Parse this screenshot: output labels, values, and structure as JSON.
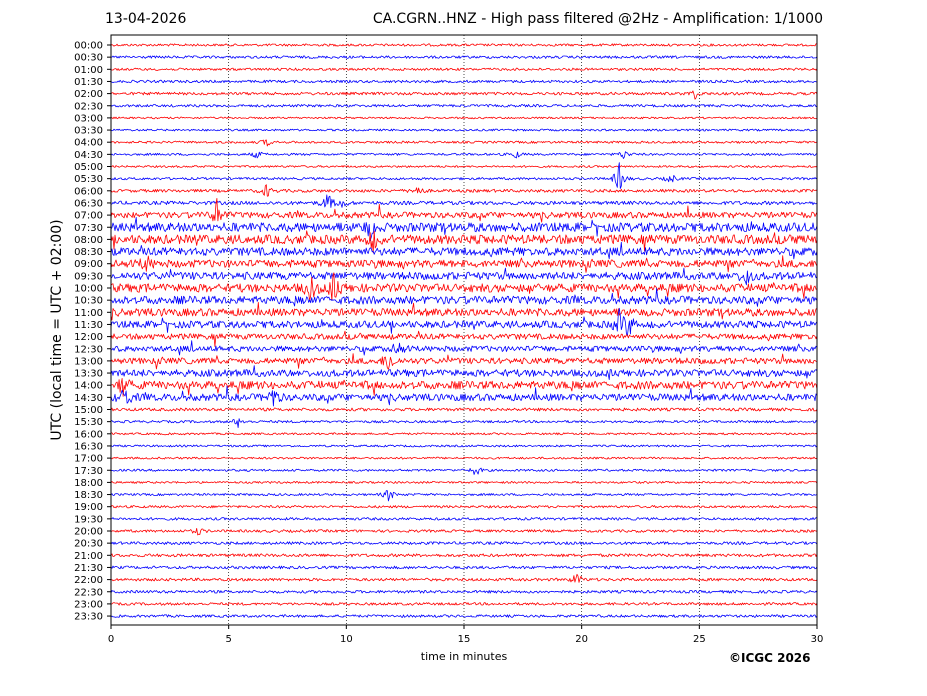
{
  "header": {
    "date": "13-04-2026",
    "title": "CA.CGRN..HNZ - High pass filtered @2Hz - Amplification: 1/1000"
  },
  "footer": {
    "copyright": "©ICGC 2026"
  },
  "colors": {
    "even_row": "#ff0000",
    "odd_row": "#0000ff",
    "grid": "#000000"
  },
  "chart_data": {
    "type": "line",
    "title": "CA.CGRN..HNZ - High pass filtered @2Hz - Amplification: 1/1000",
    "xlabel": "time in minutes",
    "ylabel": "UTC (local time = UTC + 02:00)",
    "xlim": [
      0,
      30
    ],
    "xticks": [
      0,
      5,
      10,
      15,
      20,
      25,
      30
    ],
    "grid": "vertical dotted at 5-minute intervals",
    "row_labels": [
      "00:00",
      "00:30",
      "01:00",
      "01:30",
      "02:00",
      "02:30",
      "03:00",
      "03:30",
      "04:00",
      "04:30",
      "05:00",
      "05:30",
      "06:00",
      "06:30",
      "07:00",
      "07:30",
      "08:00",
      "08:30",
      "09:00",
      "09:30",
      "10:00",
      "10:30",
      "11:00",
      "11:30",
      "12:00",
      "12:30",
      "13:00",
      "13:30",
      "14:00",
      "14:30",
      "15:00",
      "15:30",
      "16:00",
      "16:30",
      "17:00",
      "17:30",
      "18:00",
      "18:30",
      "19:00",
      "19:30",
      "20:00",
      "20:30",
      "21:00",
      "21:30",
      "22:00",
      "22:30",
      "23:00",
      "23:30"
    ],
    "row_amplitude": [
      1.2,
      1.3,
      1.2,
      1.3,
      1.4,
      1.3,
      0.9,
      1.0,
      1.1,
      1.1,
      1.0,
      1.2,
      1.5,
      1.8,
      3.0,
      4.5,
      4.5,
      4.0,
      3.8,
      3.8,
      4.2,
      4.0,
      3.8,
      3.5,
      2.8,
      2.8,
      3.0,
      3.5,
      4.0,
      3.5,
      1.5,
      1.2,
      1.0,
      1.0,
      1.0,
      1.1,
      1.0,
      1.1,
      1.2,
      1.3,
      1.3,
      1.4,
      1.5,
      1.4,
      1.4,
      1.4,
      1.3,
      1.3
    ],
    "events": [
      {
        "row": 4,
        "minute": 24.8,
        "amplitude": 5
      },
      {
        "row": 8,
        "minute": 6.6,
        "amplitude": 4
      },
      {
        "row": 9,
        "minute": 6.2,
        "amplitude": 4
      },
      {
        "row": 9,
        "minute": 17.2,
        "amplitude": 4
      },
      {
        "row": 9,
        "minute": 21.8,
        "amplitude": 5
      },
      {
        "row": 11,
        "minute": 21.6,
        "amplitude": 16
      },
      {
        "row": 11,
        "minute": 23.8,
        "amplitude": 5
      },
      {
        "row": 12,
        "minute": 6.6,
        "amplitude": 7
      },
      {
        "row": 12,
        "minute": 13.0,
        "amplitude": 6
      },
      {
        "row": 13,
        "minute": 9.2,
        "amplitude": 10
      },
      {
        "row": 13,
        "minute": 9.8,
        "amplitude": 5
      },
      {
        "row": 14,
        "minute": 4.5,
        "amplitude": 14
      },
      {
        "row": 15,
        "minute": 11.0,
        "amplitude": 10
      },
      {
        "row": 16,
        "minute": 11.1,
        "amplitude": 12
      },
      {
        "row": 18,
        "minute": 1.5,
        "amplitude": 8
      },
      {
        "row": 19,
        "minute": 27.0,
        "amplitude": 10
      },
      {
        "row": 20,
        "minute": 8.5,
        "amplitude": 14
      },
      {
        "row": 20,
        "minute": 9.5,
        "amplitude": 14
      },
      {
        "row": 23,
        "minute": 22.0,
        "amplitude": 12
      },
      {
        "row": 23,
        "minute": 21.6,
        "amplitude": 12
      },
      {
        "row": 25,
        "minute": 12.2,
        "amplitude": 8
      },
      {
        "row": 26,
        "minute": 11.8,
        "amplitude": 12
      },
      {
        "row": 28,
        "minute": 0.5,
        "amplitude": 10
      },
      {
        "row": 29,
        "minute": 0.6,
        "amplitude": 12
      },
      {
        "row": 29,
        "minute": 6.9,
        "amplitude": 10
      },
      {
        "row": 31,
        "minute": 5.4,
        "amplitude": 5
      },
      {
        "row": 35,
        "minute": 15.5,
        "amplitude": 6
      },
      {
        "row": 37,
        "minute": 11.8,
        "amplitude": 7
      },
      {
        "row": 40,
        "minute": 3.7,
        "amplitude": 4
      },
      {
        "row": 44,
        "minute": 19.8,
        "amplitude": 7
      }
    ]
  }
}
